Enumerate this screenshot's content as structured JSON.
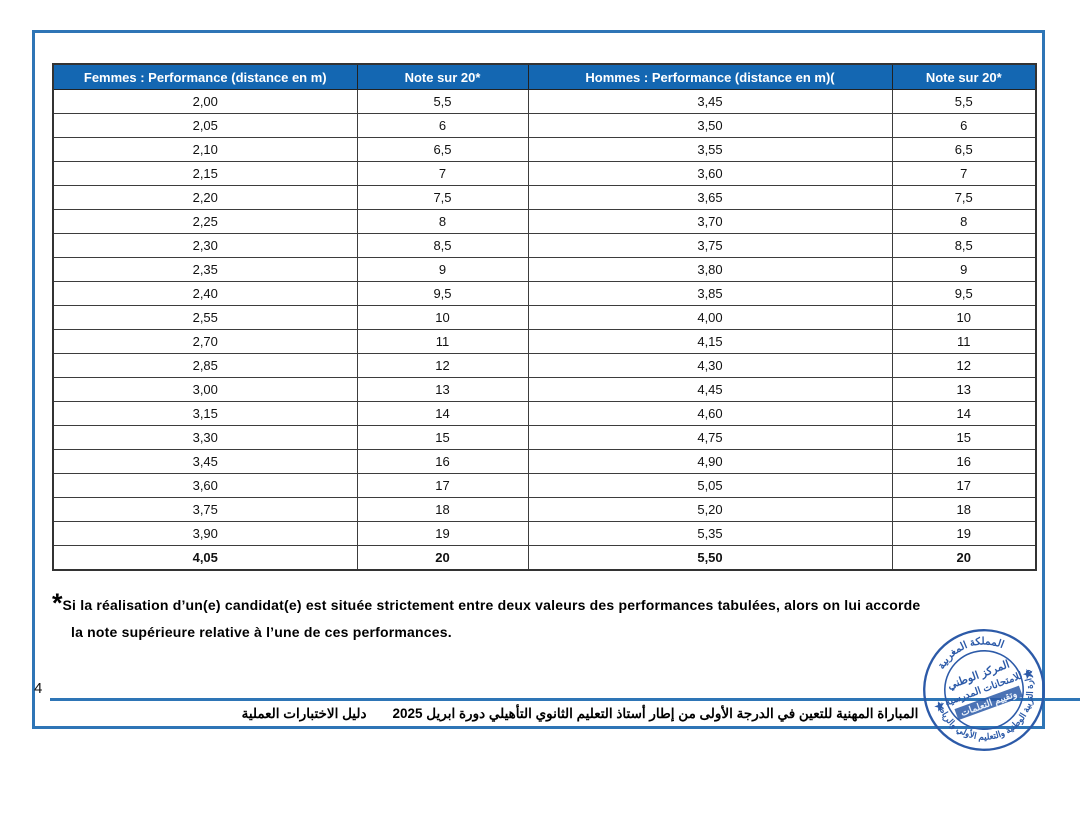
{
  "page": {
    "number": "4"
  },
  "table": {
    "headers": [
      "Femmes : Performance (distance en m)",
      "Note sur 20*",
      "Hommes : Performance (distance en m)(",
      "Note sur 20*"
    ],
    "rows": [
      [
        "2,00",
        "5,5",
        "3,45",
        "5,5"
      ],
      [
        "2,05",
        "6",
        "3,50",
        "6"
      ],
      [
        "2,10",
        "6,5",
        "3,55",
        "6,5"
      ],
      [
        "2,15",
        "7",
        "3,60",
        "7"
      ],
      [
        "2,20",
        "7,5",
        "3,65",
        "7,5"
      ],
      [
        "2,25",
        "8",
        "3,70",
        "8"
      ],
      [
        "2,30",
        "8,5",
        "3,75",
        "8,5"
      ],
      [
        "2,35",
        "9",
        "3,80",
        "9"
      ],
      [
        "2,40",
        "9,5",
        "3,85",
        "9,5"
      ],
      [
        "2,55",
        "10",
        "4,00",
        "10"
      ],
      [
        "2,70",
        "11",
        "4,15",
        "11"
      ],
      [
        "2,85",
        "12",
        "4,30",
        "12"
      ],
      [
        "3,00",
        "13",
        "4,45",
        "13"
      ],
      [
        "3,15",
        "14",
        "4,60",
        "14"
      ],
      [
        "3,30",
        "15",
        "4,75",
        "15"
      ],
      [
        "3,45",
        "16",
        "4,90",
        "16"
      ],
      [
        "3,60",
        "17",
        "5,05",
        "17"
      ],
      [
        "3,75",
        "18",
        "5,20",
        "18"
      ],
      [
        "3,90",
        "19",
        "5,35",
        "19"
      ],
      [
        "4,05",
        "20",
        "5,50",
        "20"
      ]
    ]
  },
  "footnote": {
    "marker": "*",
    "line1": "Si la réalisation d’un(e) candidat(e) est située strictement entre deux valeurs des performances tabulées, alors on lui accorde",
    "line2": "la note supérieure relative à l’une de ces performances."
  },
  "footer": {
    "title_ar": "المباراة المهنية للتعين في الدرجة الأولى من إطار أستاذ التعليم الثانوي التأهيلي دورة ابريل 2025",
    "guide_ar": "دليل الاختبارات العملية"
  },
  "stamp": {
    "ring_top": "المملكة المغربية",
    "ring_bottom": "وزارة التربية الوطنية والتعليم الأولي والرياضة",
    "inner_line1": "المركز الوطني",
    "inner_line2": "للامتحانات المدرسية",
    "inner_line3": "وتقييم التعلمات",
    "star": "★"
  },
  "colors": {
    "header_bg": "#1467B2",
    "page_border": "#2E75B6",
    "stamp_blue": "#2C5AA8"
  }
}
